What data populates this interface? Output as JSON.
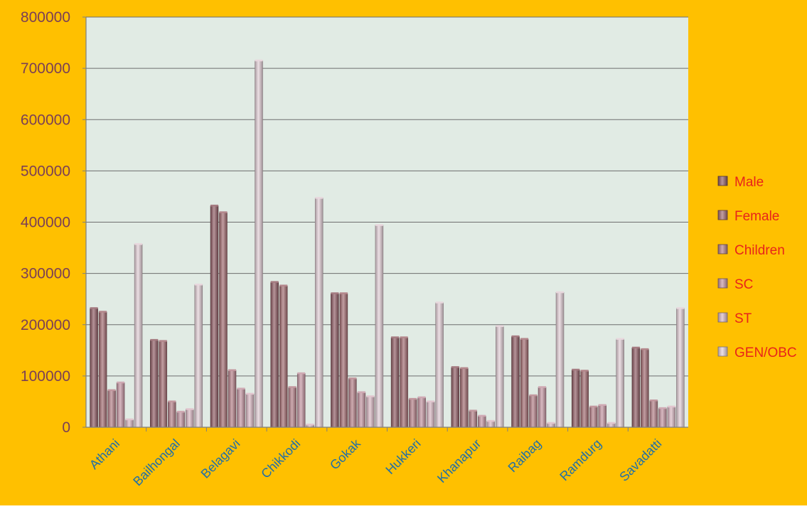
{
  "colors": {
    "background": "#FFC000",
    "plot_area": "#E1EBE4",
    "grid": "#6E6E6E",
    "series": [
      "#8E5A62",
      "#A1696F",
      "#B37D86",
      "#C393A0",
      "#D9B7C2",
      "#E2CDD5"
    ]
  },
  "chart_data": {
    "type": "bar",
    "categories": [
      "Athani",
      "Bailhongal",
      "Belagavi",
      "Chikkodi",
      "Gokak",
      "Hukkeri",
      "Khanapur",
      "Raibag",
      "Ramdurg",
      "Savadatti"
    ],
    "series": [
      {
        "name": "Male",
        "values": [
          232000,
          170000,
          432000,
          283000,
          261000,
          175000,
          117000,
          177000,
          112000,
          155000
        ]
      },
      {
        "name": "Female",
        "values": [
          225000,
          168000,
          419000,
          276000,
          261000,
          175000,
          115000,
          172000,
          110000,
          152000
        ]
      },
      {
        "name": "Children",
        "values": [
          72000,
          50000,
          111000,
          78000,
          95000,
          55000,
          32000,
          62000,
          40000,
          52000
        ]
      },
      {
        "name": "SC",
        "values": [
          87000,
          30000,
          75000,
          105000,
          68000,
          58000,
          22000,
          78000,
          43000,
          37000
        ]
      },
      {
        "name": "ST",
        "values": [
          15000,
          35000,
          65000,
          5000,
          60000,
          50000,
          12000,
          8000,
          8000,
          40000
        ]
      },
      {
        "name": "GEN/OBC",
        "values": [
          357000,
          278000,
          715000,
          447000,
          394000,
          243000,
          197000,
          263000,
          172000,
          232000
        ]
      }
    ],
    "y_ticks": [
      "0",
      "100000",
      "200000",
      "300000",
      "400000",
      "500000",
      "600000",
      "700000",
      "800000"
    ],
    "ylim": [
      0,
      800000
    ],
    "grid": true,
    "legend": "right"
  }
}
